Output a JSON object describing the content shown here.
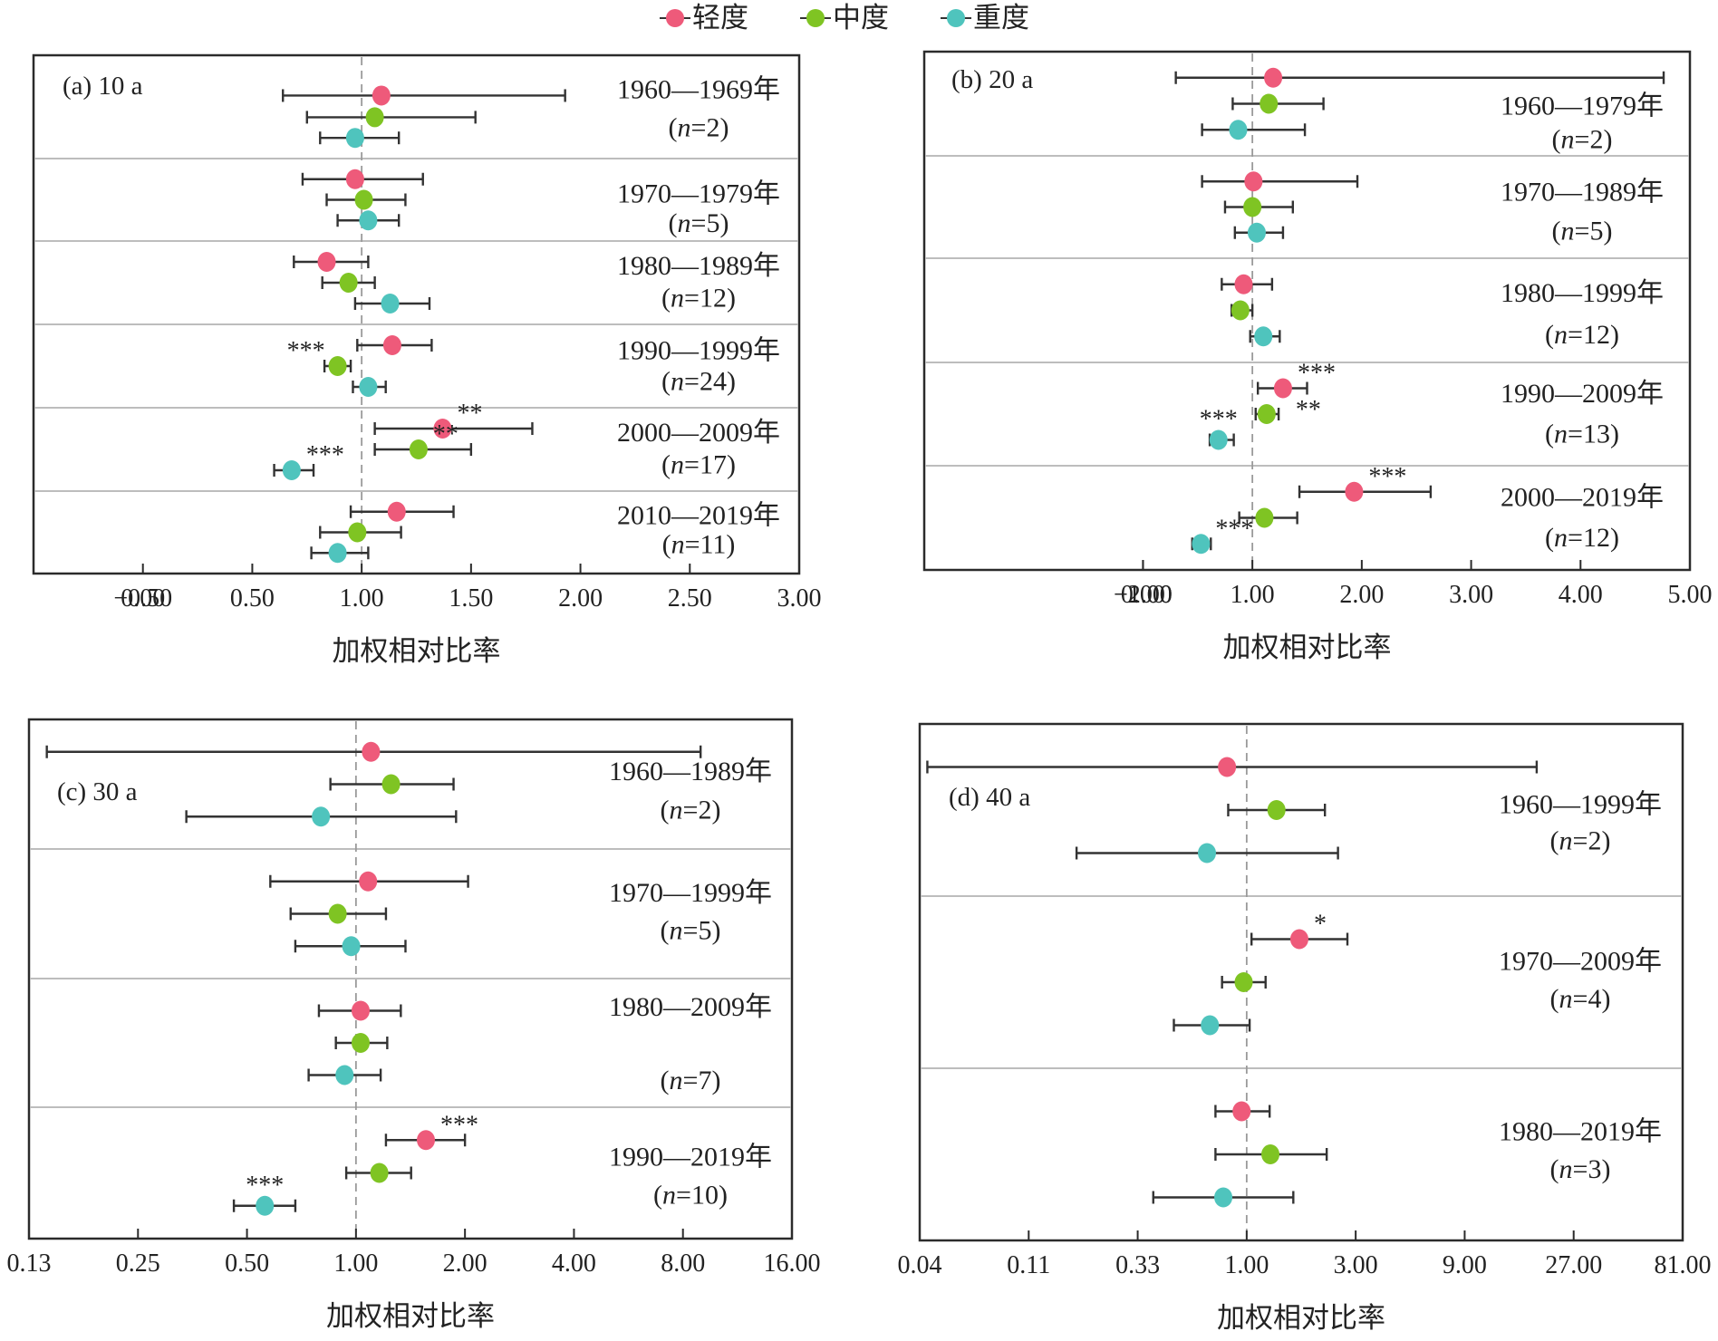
{
  "legend": [
    {
      "label": "轻度",
      "color": "#EE5A7A"
    },
    {
      "label": "中度",
      "color": "#7FC423"
    },
    {
      "label": "重度",
      "color": "#4FC4BD"
    }
  ],
  "chart_data": [
    {
      "id": "a",
      "type": "forest",
      "title": "(a) 10 a",
      "xlabel": "加权相对比率",
      "scale": "linear",
      "xlim": [
        -0.5,
        3.0
      ],
      "ticks": [
        -0.5,
        0,
        0.5,
        1,
        1.5,
        2,
        2.5,
        3
      ],
      "tick_labels": [
        "−0.50",
        "0.00",
        "0.50",
        "1.00",
        "1.50",
        "2.00",
        "2.50",
        "3.00"
      ],
      "reference_line": 1.0,
      "groups": [
        {
          "period": "1960—1969年",
          "n_label": "(n=2)",
          "n": 2,
          "points": [
            {
              "severity": "轻度",
              "value": 1.09,
              "ci": [
                0.64,
                1.93
              ]
            },
            {
              "severity": "中度",
              "value": 1.06,
              "ci": [
                0.75,
                1.52
              ]
            },
            {
              "severity": "重度",
              "value": 0.97,
              "ci": [
                0.81,
                1.17
              ]
            }
          ]
        },
        {
          "period": "1970—1979年",
          "n_label": "(n=5)",
          "n": 5,
          "points": [
            {
              "severity": "轻度",
              "value": 0.97,
              "ci": [
                0.73,
                1.28
              ]
            },
            {
              "severity": "中度",
              "value": 1.01,
              "ci": [
                0.84,
                1.2
              ]
            },
            {
              "severity": "重度",
              "value": 1.03,
              "ci": [
                0.89,
                1.17
              ]
            }
          ]
        },
        {
          "period": "1980—1989年",
          "n_label": "(n=12)",
          "n": 12,
          "points": [
            {
              "severity": "轻度",
              "value": 0.84,
              "ci": [
                0.69,
                1.03
              ]
            },
            {
              "severity": "中度",
              "value": 0.94,
              "ci": [
                0.82,
                1.06
              ]
            },
            {
              "severity": "重度",
              "value": 1.13,
              "ci": [
                0.97,
                1.31
              ]
            }
          ]
        },
        {
          "period": "1990—1999年",
          "n_label": "(n=24)",
          "n": 24,
          "points": [
            {
              "severity": "轻度",
              "value": 1.14,
              "ci": [
                0.98,
                1.32
              ]
            },
            {
              "severity": "中度",
              "value": 0.89,
              "ci": [
                0.83,
                0.95
              ],
              "sig": "***",
              "sig_pos": "above-left"
            },
            {
              "severity": "重度",
              "value": 1.03,
              "ci": [
                0.96,
                1.11
              ]
            }
          ]
        },
        {
          "period": "2000—2009年",
          "n_label": "(n=17)",
          "n": 17,
          "points": [
            {
              "severity": "轻度",
              "value": 1.37,
              "ci": [
                1.06,
                1.78
              ],
              "sig": "**",
              "sig_pos": "above-right"
            },
            {
              "severity": "中度",
              "value": 1.26,
              "ci": [
                1.06,
                1.5
              ],
              "sig": "**",
              "sig_pos": "above-right"
            },
            {
              "severity": "重度",
              "value": 0.68,
              "ci": [
                0.6,
                0.78
              ],
              "sig": "***",
              "sig_pos": "above-right"
            }
          ]
        },
        {
          "period": "2010—2019年",
          "n_label": "(n=11)",
          "n": 11,
          "points": [
            {
              "severity": "轻度",
              "value": 1.16,
              "ci": [
                0.95,
                1.42
              ]
            },
            {
              "severity": "中度",
              "value": 0.98,
              "ci": [
                0.81,
                1.18
              ]
            },
            {
              "severity": "重度",
              "value": 0.89,
              "ci": [
                0.77,
                1.03
              ]
            }
          ]
        }
      ]
    },
    {
      "id": "b",
      "type": "forest",
      "title": "(b) 20 a",
      "xlabel": "加权相对比率",
      "scale": "linear",
      "xlim": [
        -2.0,
        5.0
      ],
      "ticks": [
        -2,
        -1,
        0,
        1,
        2,
        3,
        4,
        5
      ],
      "tick_labels": [
        "−2.00",
        "−1.00",
        "0.00",
        "1.00",
        "2.00",
        "3.00",
        "4.00",
        "5.00"
      ],
      "reference_line": 1.0,
      "groups": [
        {
          "period": "1960—1979年",
          "n_label": "(n=2)",
          "n": 2,
          "points": [
            {
              "severity": "轻度",
              "value": 1.19,
              "ci": [
                0.3,
                4.76
              ]
            },
            {
              "severity": "中度",
              "value": 1.15,
              "ci": [
                0.82,
                1.65
              ]
            },
            {
              "severity": "重度",
              "value": 0.87,
              "ci": [
                0.54,
                1.48
              ]
            }
          ]
        },
        {
          "period": "1970—1989年",
          "n_label": "(n=5)",
          "n": 5,
          "points": [
            {
              "severity": "轻度",
              "value": 1.01,
              "ci": [
                0.54,
                1.96
              ]
            },
            {
              "severity": "中度",
              "value": 1.0,
              "ci": [
                0.75,
                1.37
              ]
            },
            {
              "severity": "重度",
              "value": 1.04,
              "ci": [
                0.84,
                1.28
              ]
            }
          ]
        },
        {
          "period": "1980—1999年",
          "n_label": "(n=12)",
          "n": 12,
          "points": [
            {
              "severity": "轻度",
              "value": 0.92,
              "ci": [
                0.72,
                1.18
              ]
            },
            {
              "severity": "中度",
              "value": 0.89,
              "ci": [
                0.81,
                1.0
              ]
            },
            {
              "severity": "重度",
              "value": 1.1,
              "ci": [
                0.98,
                1.25
              ]
            }
          ]
        },
        {
          "period": "1990—2009年",
          "n_label": "(n=13)",
          "n": 13,
          "points": [
            {
              "severity": "轻度",
              "value": 1.28,
              "ci": [
                1.05,
                1.5
              ],
              "sig": "***",
              "sig_pos": "above-right"
            },
            {
              "severity": "中度",
              "value": 1.13,
              "ci": [
                1.03,
                1.24
              ],
              "sig": "**",
              "sig_pos": "right"
            },
            {
              "severity": "重度",
              "value": 0.69,
              "ci": [
                0.61,
                0.83
              ],
              "sig": "***",
              "sig_pos": "above"
            }
          ]
        },
        {
          "period": "2000—2019年",
          "n_label": "(n=12)",
          "n": 12,
          "points": [
            {
              "severity": "轻度",
              "value": 1.93,
              "ci": [
                1.43,
                2.63
              ],
              "sig": "***",
              "sig_pos": "above-right"
            },
            {
              "severity": "中度",
              "value": 1.11,
              "ci": [
                0.88,
                1.41
              ]
            },
            {
              "severity": "重度",
              "value": 0.53,
              "ci": [
                0.45,
                0.62
              ],
              "sig": "***",
              "sig_pos": "above-right"
            }
          ]
        }
      ]
    },
    {
      "id": "c",
      "type": "forest",
      "title": "(c) 30 a",
      "xlabel": "加权相对比率",
      "scale": "log2",
      "xlim": [
        0.125,
        16
      ],
      "ticks": [
        0.125,
        0.25,
        0.5,
        1,
        2,
        4,
        8,
        16
      ],
      "tick_labels": [
        "0.13",
        "0.25",
        "0.50",
        "1.00",
        "2.00",
        "4.00",
        "8.00",
        "16.00"
      ],
      "reference_line": 1.0,
      "groups": [
        {
          "period": "1960—1989年",
          "n_label": "(n=2)",
          "n": 2,
          "points": [
            {
              "severity": "轻度",
              "value": 1.1,
              "ci": [
                0.14,
                8.95
              ]
            },
            {
              "severity": "中度",
              "value": 1.25,
              "ci": [
                0.85,
                1.86
              ]
            },
            {
              "severity": "重度",
              "value": 0.8,
              "ci": [
                0.34,
                1.89
              ]
            }
          ]
        },
        {
          "period": "1970—1999年",
          "n_label": "(n=5)",
          "n": 5,
          "points": [
            {
              "severity": "轻度",
              "value": 1.08,
              "ci": [
                0.58,
                2.04
              ]
            },
            {
              "severity": "中度",
              "value": 0.89,
              "ci": [
                0.66,
                1.21
              ]
            },
            {
              "severity": "重度",
              "value": 0.97,
              "ci": [
                0.68,
                1.37
              ]
            }
          ]
        },
        {
          "period": "1980—2009年",
          "n_label": "(n=7)",
          "n": 7,
          "points": [
            {
              "severity": "轻度",
              "value": 1.03,
              "ci": [
                0.79,
                1.33
              ]
            },
            {
              "severity": "中度",
              "value": 1.03,
              "ci": [
                0.88,
                1.22
              ]
            },
            {
              "severity": "重度",
              "value": 0.93,
              "ci": [
                0.74,
                1.17
              ]
            }
          ]
        },
        {
          "period": "1990—2019年",
          "n_label": "(n=10)",
          "n": 10,
          "points": [
            {
              "severity": "轻度",
              "value": 1.56,
              "ci": [
                1.21,
                2.0
              ],
              "sig": "***",
              "sig_pos": "above-right"
            },
            {
              "severity": "中度",
              "value": 1.16,
              "ci": [
                0.94,
                1.42
              ]
            },
            {
              "severity": "重度",
              "value": 0.56,
              "ci": [
                0.46,
                0.68
              ],
              "sig": "***",
              "sig_pos": "above"
            }
          ]
        }
      ]
    },
    {
      "id": "d",
      "type": "forest",
      "title": "(d) 40 a",
      "xlabel": "加权相对比率",
      "scale": "log3",
      "xlim": [
        0.037,
        81
      ],
      "ticks": [
        0.037037,
        0.111111,
        0.333333,
        1,
        3,
        9,
        27,
        81
      ],
      "tick_labels": [
        "0.04",
        "0.11",
        "0.33",
        "1.00",
        "3.00",
        "9.00",
        "27.00",
        "81.00"
      ],
      "reference_line": 1.0,
      "groups": [
        {
          "period": "1960—1999年",
          "n_label": "(n=2)",
          "n": 2,
          "points": [
            {
              "severity": "轻度",
              "value": 0.82,
              "ci": [
                0.04,
                18.6
              ]
            },
            {
              "severity": "中度",
              "value": 1.35,
              "ci": [
                0.83,
                2.2
              ]
            },
            {
              "severity": "重度",
              "value": 0.67,
              "ci": [
                0.18,
                2.51
              ]
            }
          ]
        },
        {
          "period": "1970—2009年",
          "n_label": "(n=4)",
          "n": 4,
          "points": [
            {
              "severity": "轻度",
              "value": 1.7,
              "ci": [
                1.05,
                2.76
              ],
              "sig": "*",
              "sig_pos": "above-right"
            },
            {
              "severity": "中度",
              "value": 0.97,
              "ci": [
                0.78,
                1.21
              ]
            },
            {
              "severity": "重度",
              "value": 0.69,
              "ci": [
                0.48,
                1.03
              ]
            }
          ]
        },
        {
          "period": "1980—2019年",
          "n_label": "(n=3)",
          "n": 3,
          "points": [
            {
              "severity": "轻度",
              "value": 0.95,
              "ci": [
                0.73,
                1.26
              ]
            },
            {
              "severity": "中度",
              "value": 1.27,
              "ci": [
                0.73,
                2.24
              ]
            },
            {
              "severity": "重度",
              "value": 0.79,
              "ci": [
                0.39,
                1.6
              ]
            }
          ]
        }
      ]
    }
  ]
}
